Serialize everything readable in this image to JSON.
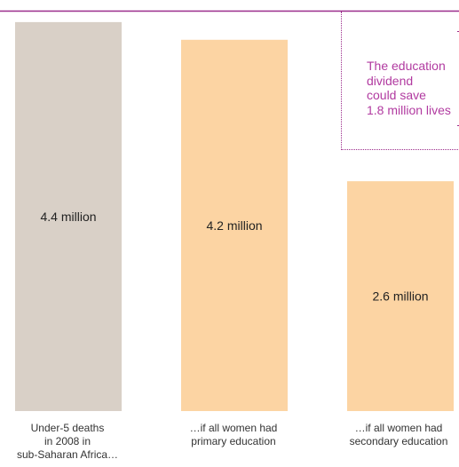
{
  "chart_data": {
    "type": "bar",
    "categories": [
      "Under-5 deaths\nin 2008 in\nsub-Saharan Africa…",
      "…if all women had\nprimary education",
      "…if all women had\nsecondary education"
    ],
    "values": [
      4.4,
      4.2,
      2.6
    ],
    "value_labels": [
      "4.4 million",
      "4.2 million",
      "2.6 million"
    ],
    "ylim": [
      0,
      4.65
    ],
    "bar_colors": [
      "#d9d0c7",
      "#fcd4a3",
      "#fcd4a3"
    ],
    "title": "",
    "xlabel": "",
    "ylabel": "",
    "annotation": "The education\ndividend\ncould save\n1.8 million lives"
  },
  "colors": {
    "accent_line": "#9b2c8b",
    "annotation_text": "#b13aa0",
    "value_text": "#222222"
  }
}
